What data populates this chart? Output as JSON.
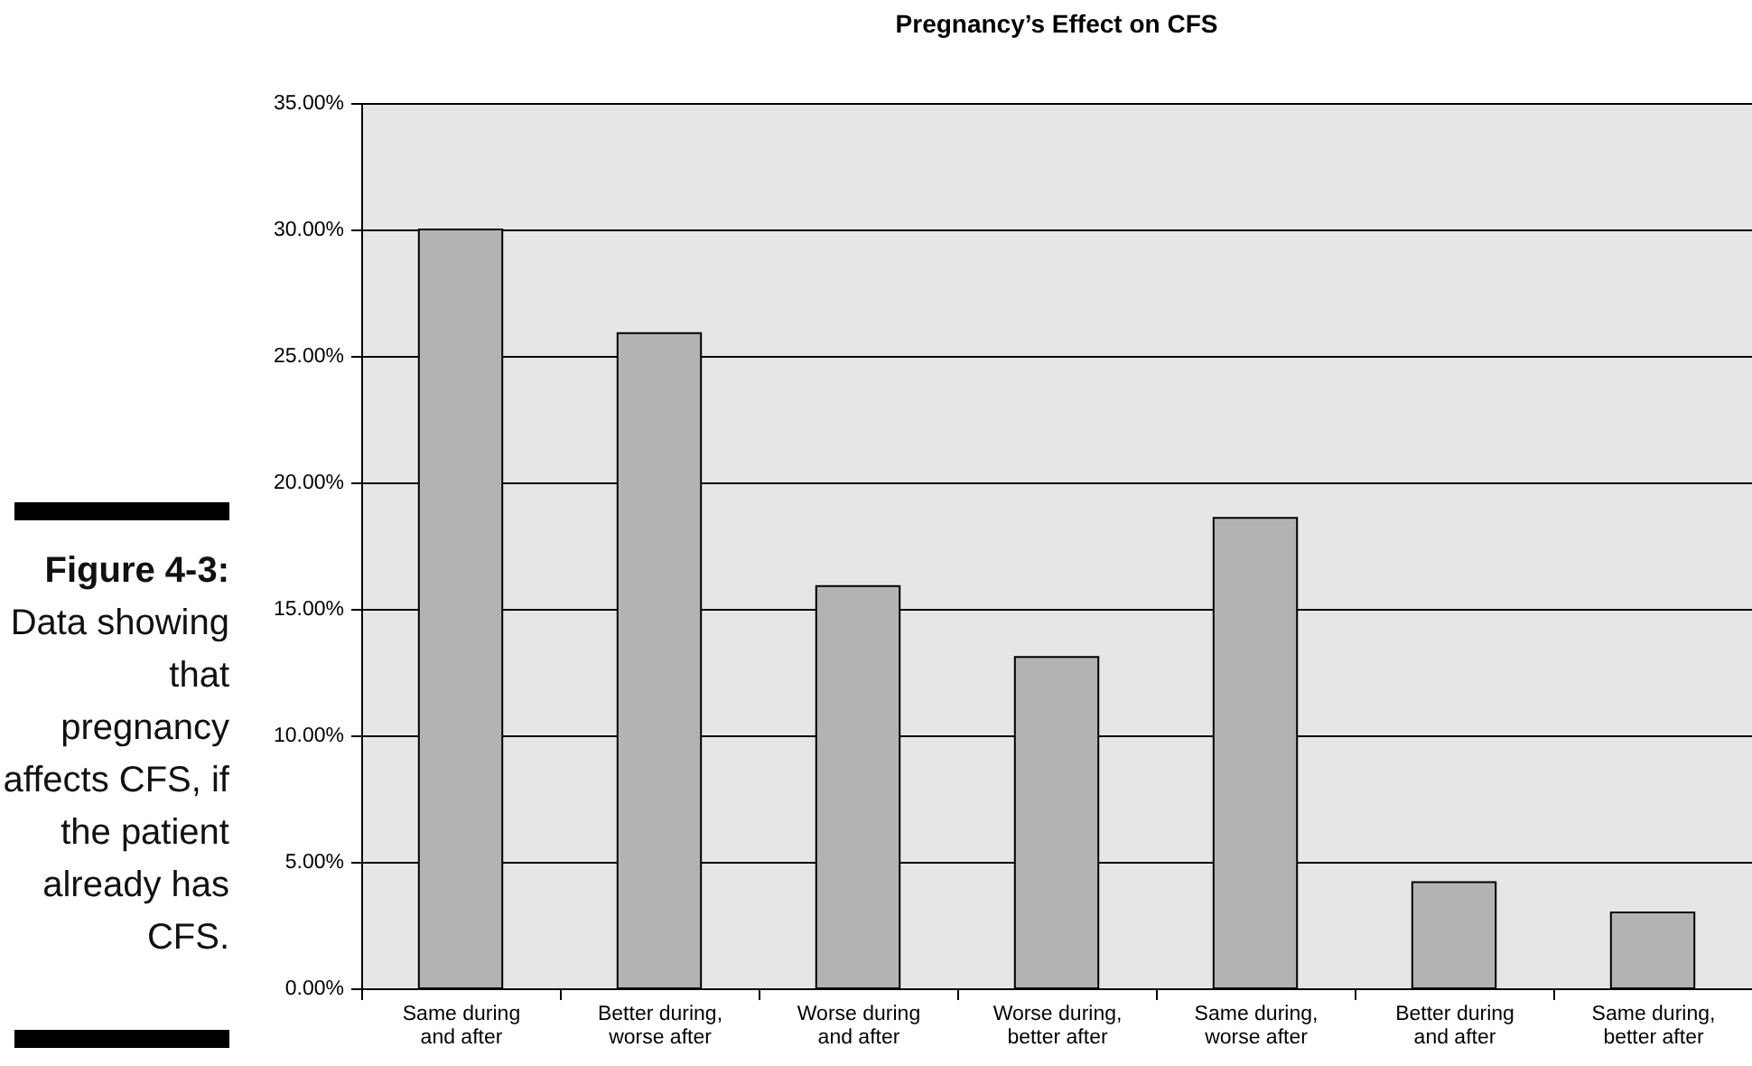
{
  "chart_data": {
    "type": "bar",
    "title": "Pregnancy’s Effect on CFS",
    "categories": [
      "Same during and after",
      "Better during, worse after",
      "Worse during and after",
      "Worse during, better after",
      "Same during, worse after",
      "Better during and after",
      "Same during, better after"
    ],
    "values": [
      30.0,
      25.9,
      15.9,
      13.1,
      18.6,
      4.2,
      3.0
    ],
    "color": "#b3b3b3",
    "ylim": [
      0,
      35
    ],
    "yticks": [
      {
        "value": 0,
        "label": "0.00%"
      },
      {
        "value": 5,
        "label": "5.00%"
      },
      {
        "value": 10,
        "label": "10.00%"
      },
      {
        "value": 15,
        "label": "15.00%"
      },
      {
        "value": 20,
        "label": "20.00%"
      },
      {
        "value": 25,
        "label": "25.00%"
      },
      {
        "value": 30,
        "label": "30.00%"
      },
      {
        "value": 35,
        "label": "35.00%"
      }
    ],
    "grid": "y",
    "annotations": [
      "Figure 4-3:",
      "Data showing that pregnancy affects CFS, if the patient already has CFS."
    ]
  }
}
